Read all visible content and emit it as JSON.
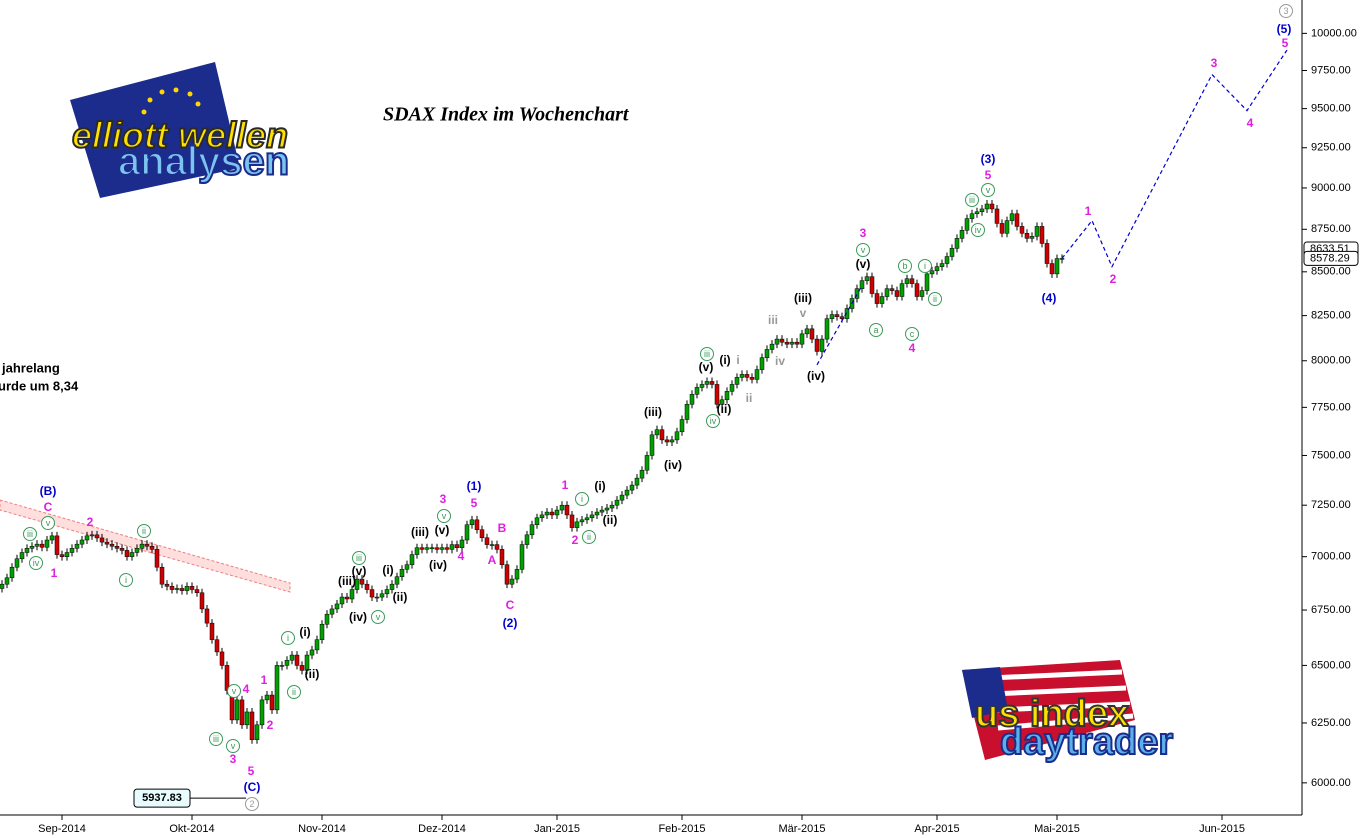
{
  "chart_data": {
    "type": "candlestick",
    "title": "SDAX Index im Wochenchart",
    "log": true,
    "up_color": "#00a000",
    "down_color": "#d00000",
    "ylim": [
      5890,
      10230
    ],
    "yticks": [
      {
        "value": 6000,
        "label": "6000.00"
      },
      {
        "value": 6250,
        "label": "6250.00"
      },
      {
        "value": 6500,
        "label": "6500.00"
      },
      {
        "value": 6750,
        "label": "6750.00"
      },
      {
        "value": 7000,
        "label": "7000.00"
      },
      {
        "value": 7250,
        "label": "7250.00"
      },
      {
        "value": 7500,
        "label": "7500.00"
      },
      {
        "value": 7750,
        "label": "7750.00"
      },
      {
        "value": 8000,
        "label": "8000.00"
      },
      {
        "value": 8250,
        "label": "8250.00"
      },
      {
        "value": 8500,
        "label": "8500.00"
      },
      {
        "value": 8750,
        "label": "8750.00"
      },
      {
        "value": 9000,
        "label": "9000.00"
      },
      {
        "value": 9250,
        "label": "9250.00"
      },
      {
        "value": 9500,
        "label": "9500.00"
      },
      {
        "value": 9750,
        "label": "9750.00"
      },
      {
        "value": 10000,
        "label": "10000.00"
      }
    ],
    "xlim": [
      -0.4,
      259.6
    ],
    "xticks": [
      {
        "value": 12,
        "label": "Sep-2014"
      },
      {
        "value": 38,
        "label": "Okt-2014"
      },
      {
        "value": 64,
        "label": "Nov-2014"
      },
      {
        "value": 88,
        "label": "Dez-2014"
      },
      {
        "value": 111,
        "label": "Jan-2015"
      },
      {
        "value": 136,
        "label": "Feb-2015"
      },
      {
        "value": 160,
        "label": "Mär-2015"
      },
      {
        "value": 187,
        "label": "Apr-2015"
      },
      {
        "value": 211,
        "label": "Mai-2015"
      },
      {
        "value": 244,
        "label": "Jun-2015"
      }
    ],
    "x": [
      0,
      1,
      2,
      3,
      4,
      5,
      6,
      7,
      8,
      9,
      10,
      11,
      12,
      13,
      14,
      15,
      16,
      17,
      18,
      19,
      20,
      21,
      22,
      23,
      24,
      25,
      26,
      27,
      28,
      29,
      30,
      31,
      32,
      33,
      34,
      35,
      36,
      37,
      38,
      39,
      40,
      41,
      42,
      43,
      44,
      45,
      46,
      47,
      48,
      49,
      50,
      51,
      52,
      53,
      54,
      55,
      56,
      57,
      58,
      59,
      60,
      61,
      62,
      63,
      64,
      65,
      66,
      67,
      68,
      69,
      70,
      71,
      72,
      73,
      74,
      75,
      76,
      77,
      78,
      79,
      80,
      81,
      82,
      83,
      84,
      85,
      86,
      87,
      88,
      89,
      90,
      91,
      92,
      93,
      94,
      95,
      96,
      97,
      98,
      99,
      100,
      101,
      102,
      103,
      104,
      105,
      106,
      107,
      108,
      109,
      110,
      111,
      112,
      113,
      114,
      115,
      116,
      117,
      118,
      119,
      120,
      121,
      122,
      123,
      124,
      125,
      126,
      127,
      128,
      129,
      130,
      131,
      132,
      133,
      134,
      135,
      136,
      137,
      138,
      139,
      140,
      141,
      142,
      143,
      144,
      145,
      146,
      147,
      148,
      149,
      150,
      151,
      152,
      153,
      154,
      155,
      156,
      157,
      158,
      159,
      160,
      161,
      162,
      163,
      164,
      165,
      166,
      167,
      168,
      169,
      170,
      171,
      172,
      173,
      174,
      175,
      176,
      177,
      178,
      179,
      180,
      181,
      182,
      183,
      184,
      185,
      186,
      187,
      188,
      189,
      190,
      191,
      192,
      193,
      194,
      195,
      196,
      197,
      198,
      199,
      200,
      201,
      202,
      203,
      204,
      205,
      206,
      207,
      208,
      209,
      210,
      211,
      212
    ],
    "open": [
      6850,
      6870,
      6900,
      6950,
      6990,
      7020,
      7040,
      7050,
      7060,
      7045,
      7080,
      7100,
      7010,
      7000,
      7020,
      7040,
      7060,
      7080,
      7100,
      7105,
      7090,
      7070,
      7060,
      7050,
      7040,
      7030,
      7000,
      7020,
      7040,
      7060,
      7050,
      7035,
      6950,
      6870,
      6860,
      6845,
      6850,
      6840,
      6860,
      6845,
      6830,
      6755,
      6690,
      6615,
      6560,
      6500,
      6390,
      6263,
      6349,
      6242,
      6297,
      6179,
      6242,
      6349,
      6370,
      6306,
      6500,
      6500,
      6523,
      6546,
      6500,
      6478,
      6546,
      6569,
      6615,
      6685,
      6731,
      6755,
      6778,
      6810,
      6801,
      6845,
      6894,
      6870,
      6845,
      6810,
      6810,
      6825,
      6845,
      6870,
      6905,
      6940,
      6962,
      7010,
      7043,
      7035,
      7043,
      7043,
      7035,
      7043,
      7035,
      7058,
      7043,
      7080,
      7154,
      7178,
      7130,
      7091,
      7058,
      7058,
      7035,
      6962,
      6870,
      6894,
      6940,
      7058,
      7105,
      7154,
      7188,
      7202,
      7216,
      7202,
      7226,
      7250,
      7202,
      7140,
      7168,
      7178,
      7188,
      7202,
      7216,
      7226,
      7236,
      7250,
      7275,
      7300,
      7325,
      7350,
      7385,
      7425,
      7500,
      7606,
      7633,
      7580,
      7569,
      7580,
      7622,
      7686,
      7766,
      7819,
      7856,
      7872,
      7888,
      7872,
      7766,
      7790,
      7835,
      7872,
      7910,
      7926,
      7910,
      7899,
      7952,
      8017,
      8062,
      8091,
      8119,
      8102,
      8091,
      8102,
      8091,
      8148,
      8176,
      8119,
      8051,
      8119,
      8233,
      8256,
      8244,
      8233,
      8290,
      8347,
      8403,
      8449,
      8472,
      8375,
      8318,
      8358,
      8403,
      8392,
      8358,
      8432,
      8460,
      8432,
      8358,
      8392,
      8488,
      8506,
      8530,
      8548,
      8589,
      8637,
      8696,
      8744,
      8814,
      8843,
      8855,
      8872,
      8902,
      8872,
      8785,
      8726,
      8802,
      8843,
      8767,
      8726,
      8696,
      8708,
      8767,
      8666,
      8548,
      8488,
      8577
    ],
    "close": [
      6870,
      6900,
      6950,
      6990,
      7020,
      7040,
      7050,
      7060,
      7045,
      7080,
      7100,
      7010,
      7000,
      7020,
      7040,
      7060,
      7080,
      7100,
      7105,
      7090,
      7070,
      7060,
      7050,
      7040,
      7030,
      7000,
      7020,
      7040,
      7060,
      7050,
      7035,
      6950,
      6870,
      6860,
      6845,
      6850,
      6840,
      6860,
      6845,
      6830,
      6755,
      6690,
      6615,
      6560,
      6500,
      6390,
      6263,
      6349,
      6242,
      6297,
      6179,
      6242,
      6349,
      6370,
      6306,
      6500,
      6500,
      6523,
      6546,
      6500,
      6478,
      6546,
      6569,
      6615,
      6685,
      6731,
      6755,
      6778,
      6810,
      6801,
      6845,
      6894,
      6870,
      6845,
      6810,
      6810,
      6825,
      6845,
      6870,
      6905,
      6940,
      6962,
      7010,
      7043,
      7035,
      7043,
      7043,
      7035,
      7043,
      7035,
      7058,
      7043,
      7080,
      7154,
      7178,
      7130,
      7091,
      7058,
      7058,
      7035,
      6962,
      6870,
      6894,
      6940,
      7058,
      7105,
      7154,
      7188,
      7202,
      7216,
      7202,
      7226,
      7250,
      7202,
      7140,
      7168,
      7178,
      7188,
      7202,
      7216,
      7226,
      7236,
      7250,
      7275,
      7300,
      7325,
      7350,
      7385,
      7425,
      7500,
      7606,
      7633,
      7580,
      7569,
      7580,
      7622,
      7686,
      7766,
      7819,
      7856,
      7872,
      7888,
      7872,
      7766,
      7790,
      7835,
      7872,
      7910,
      7926,
      7910,
      7899,
      7952,
      8017,
      8062,
      8091,
      8119,
      8102,
      8091,
      8102,
      8091,
      8148,
      8176,
      8119,
      8051,
      8119,
      8233,
      8256,
      8244,
      8233,
      8290,
      8347,
      8403,
      8449,
      8472,
      8375,
      8318,
      8358,
      8403,
      8392,
      8358,
      8432,
      8460,
      8432,
      8358,
      8392,
      8488,
      8506,
      8530,
      8548,
      8589,
      8637,
      8696,
      8744,
      8814,
      8843,
      8855,
      8872,
      8902,
      8872,
      8785,
      8726,
      8802,
      8843,
      8767,
      8726,
      8696,
      8708,
      8767,
      8666,
      8548,
      8488,
      8577,
      8578.29
    ],
    "projection": [
      {
        "color": "#0000cc",
        "x": [
          212,
          218,
          222,
          242,
          249,
          257
        ],
        "values": [
          8578.29,
          8802,
          8530,
          9723,
          9487,
          9887
        ]
      },
      {
        "color": "#0000cc",
        "x": [
          163,
          172
        ],
        "values": [
          7978,
          8420
        ]
      }
    ],
    "price_markers": [
      {
        "value": 8633.51,
        "label": "8633.51"
      },
      {
        "value": 8578.29,
        "label": "8578.29"
      },
      {
        "value": 5937.83,
        "label": "5937.83"
      }
    ],
    "note_lines": [
      "jahrelang",
      "urde um 8,34"
    ],
    "logo_left": [
      "elliott wellen",
      "analysen"
    ],
    "logo_right": [
      "us index",
      "daytrader"
    ],
    "wave_labels": [
      {
        "text": "(B)",
        "color": "#0000cc"
      },
      {
        "text": "C",
        "color": "#e020e0"
      },
      {
        "text": "v",
        "color": "#3a9a5a",
        "circled": true
      },
      {
        "text": "iii",
        "color": "#3a9a5a",
        "circled": true
      },
      {
        "text": "iv",
        "color": "#3a9a5a",
        "circled": true
      },
      {
        "text": "1",
        "color": "#e020e0"
      },
      {
        "text": "2",
        "color": "#e020e0"
      },
      {
        "text": "ii",
        "color": "#3a9a5a",
        "circled": true
      },
      {
        "text": "i",
        "color": "#3a9a5a",
        "circled": true
      },
      {
        "text": "iii",
        "color": "#3a9a5a",
        "circled": true
      },
      {
        "text": "v",
        "color": "#3a9a5a",
        "circled": true
      },
      {
        "text": "3",
        "color": "#e020e0"
      },
      {
        "text": "5",
        "color": "#e020e0"
      },
      {
        "text": "4",
        "color": "#e020e0"
      },
      {
        "text": "v",
        "color": "#3a9a5a",
        "circled": true
      },
      {
        "text": "1",
        "color": "#e020e0"
      },
      {
        "text": "2",
        "color": "#e020e0"
      },
      {
        "text": "ii",
        "color": "#3a9a5a",
        "circled": true
      },
      {
        "text": "i",
        "color": "#3a9a5a",
        "circled": true
      },
      {
        "text": "(C)",
        "color": "#0000cc"
      },
      {
        "text": "2",
        "color": "#999999",
        "circled": true
      },
      {
        "text": "(i)",
        "color": "#000000"
      },
      {
        "text": "(ii)",
        "color": "#000000"
      },
      {
        "text": "(iii)",
        "color": "#000000"
      },
      {
        "text": "(iv)",
        "color": "#000000"
      },
      {
        "text": "(v)",
        "color": "#000000"
      },
      {
        "text": "iii",
        "color": "#3a9a5a",
        "circled": true
      },
      {
        "text": "v",
        "color": "#3a9a5a",
        "circled": true
      },
      {
        "text": "(i)",
        "color": "#000000"
      },
      {
        "text": "(ii)",
        "color": "#000000"
      },
      {
        "text": "(iii)",
        "color": "#000000"
      },
      {
        "text": "(iv)",
        "color": "#000000"
      },
      {
        "text": "(v)",
        "color": "#000000"
      },
      {
        "text": "v",
        "color": "#3a9a5a",
        "circled": true
      },
      {
        "text": "3",
        "color": "#e020e0"
      },
      {
        "text": "4",
        "color": "#e020e0"
      },
      {
        "text": "(1)",
        "color": "#0000cc"
      },
      {
        "text": "5",
        "color": "#e020e0"
      },
      {
        "text": "B",
        "color": "#e020e0"
      },
      {
        "text": "A",
        "color": "#e020e0"
      },
      {
        "text": "C",
        "color": "#e020e0"
      },
      {
        "text": "(2)",
        "color": "#0000cc"
      },
      {
        "text": "1",
        "color": "#e020e0"
      },
      {
        "text": "2",
        "color": "#e020e0"
      },
      {
        "text": "i",
        "color": "#3a9a5a",
        "circled": true
      },
      {
        "text": "ii",
        "color": "#3a9a5a",
        "circled": true
      },
      {
        "text": "(i)",
        "color": "#000000"
      },
      {
        "text": "(ii)",
        "color": "#000000"
      },
      {
        "text": "(iii)",
        "color": "#000000"
      },
      {
        "text": "(iv)",
        "color": "#000000"
      },
      {
        "text": "(v)",
        "color": "#000000"
      },
      {
        "text": "iii",
        "color": "#3a9a5a",
        "circled": true
      },
      {
        "text": "(i)",
        "color": "#000000"
      },
      {
        "text": "i",
        "color": "#999999"
      },
      {
        "text": "(ii)",
        "color": "#000000"
      },
      {
        "text": "iv",
        "color": "#3a9a5a",
        "circled": true
      },
      {
        "text": "ii",
        "color": "#999999"
      },
      {
        "text": "iii",
        "color": "#999999"
      },
      {
        "text": "iv",
        "color": "#999999"
      },
      {
        "text": "v",
        "color": "#999999"
      },
      {
        "text": "(iii)",
        "color": "#000000"
      },
      {
        "text": "(iv)",
        "color": "#000000"
      },
      {
        "text": "3",
        "color": "#e020e0"
      },
      {
        "text": "v",
        "color": "#3a9a5a",
        "circled": true
      },
      {
        "text": "(v)",
        "color": "#000000"
      },
      {
        "text": "a",
        "color": "#3a9a5a",
        "circled": true
      },
      {
        "text": "b",
        "color": "#3a9a5a",
        "circled": true
      },
      {
        "text": "i",
        "color": "#3a9a5a",
        "circled": true
      },
      {
        "text": "ii",
        "color": "#3a9a5a",
        "circled": true
      },
      {
        "text": "c",
        "color": "#3a9a5a",
        "circled": true
      },
      {
        "text": "4",
        "color": "#e020e0"
      },
      {
        "text": "(3)",
        "color": "#0000cc"
      },
      {
        "text": "5",
        "color": "#e020e0"
      },
      {
        "text": "v",
        "color": "#3a9a5a",
        "circled": true
      },
      {
        "text": "iii",
        "color": "#3a9a5a",
        "circled": true
      },
      {
        "text": "iv",
        "color": "#3a9a5a",
        "circled": true
      },
      {
        "text": "(4)",
        "color": "#0000cc"
      },
      {
        "text": "1",
        "color": "#e020e0"
      },
      {
        "text": "2",
        "color": "#e020e0"
      },
      {
        "text": "3",
        "color": "#e020e0"
      },
      {
        "text": "4",
        "color": "#e020e0"
      },
      {
        "text": "5",
        "color": "#e020e0"
      },
      {
        "text": "(5)",
        "color": "#0000cc"
      },
      {
        "text": "3",
        "color": "#999999",
        "circled": true
      }
    ]
  }
}
